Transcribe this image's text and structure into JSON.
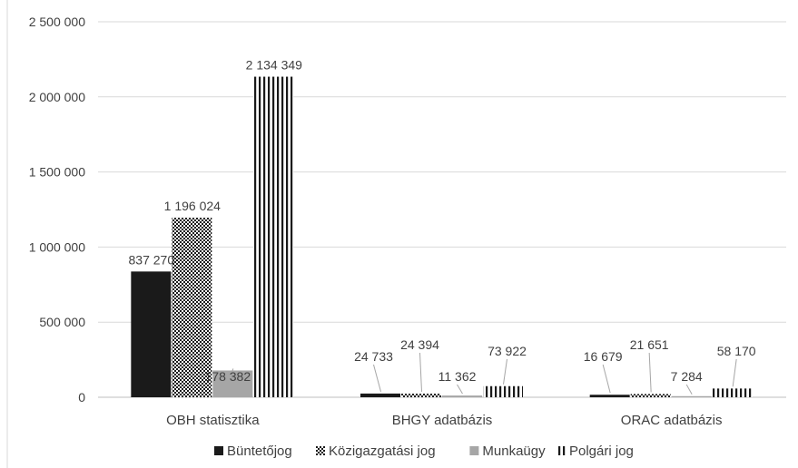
{
  "chart_data": {
    "type": "bar",
    "title": "",
    "xlabel": "",
    "ylabel": "",
    "categories": [
      "OBH statisztika",
      "BHGY adatbázis",
      "ORAC adatbázis"
    ],
    "ylim": [
      0,
      2500000
    ],
    "yticks": [
      0,
      500000,
      1000000,
      1500000,
      2000000,
      2500000
    ],
    "ytick_labels": [
      "0",
      "500 000",
      "1 000 000",
      "1 500 000",
      "2 000 000",
      "2 500 000"
    ],
    "grid": true,
    "legend_position": "bottom",
    "series": [
      {
        "name": "Büntetőjog",
        "values": [
          837270,
          24733,
          16679
        ],
        "labels": [
          "837 270",
          "24 733",
          "16 679"
        ],
        "color": "#1a1a1a",
        "pattern": "solid"
      },
      {
        "name": "Közigazgatási jog",
        "values": [
          1196024,
          24394,
          21651
        ],
        "labels": [
          "1 196 024",
          "24 394",
          "21 651"
        ],
        "color": "#1a1a1a",
        "pattern": "dots"
      },
      {
        "name": "Munkaügy",
        "values": [
          178382,
          11362,
          7284
        ],
        "labels": [
          "178 382",
          "11 362",
          "7 284"
        ],
        "color": "#a6a6a6",
        "pattern": "solid"
      },
      {
        "name": "Polgári jog",
        "values": [
          2134349,
          73922,
          58170
        ],
        "labels": [
          "2 134 349",
          "73 922",
          "58 170"
        ],
        "color": "#1a1a1a",
        "pattern": "vlines"
      }
    ]
  }
}
